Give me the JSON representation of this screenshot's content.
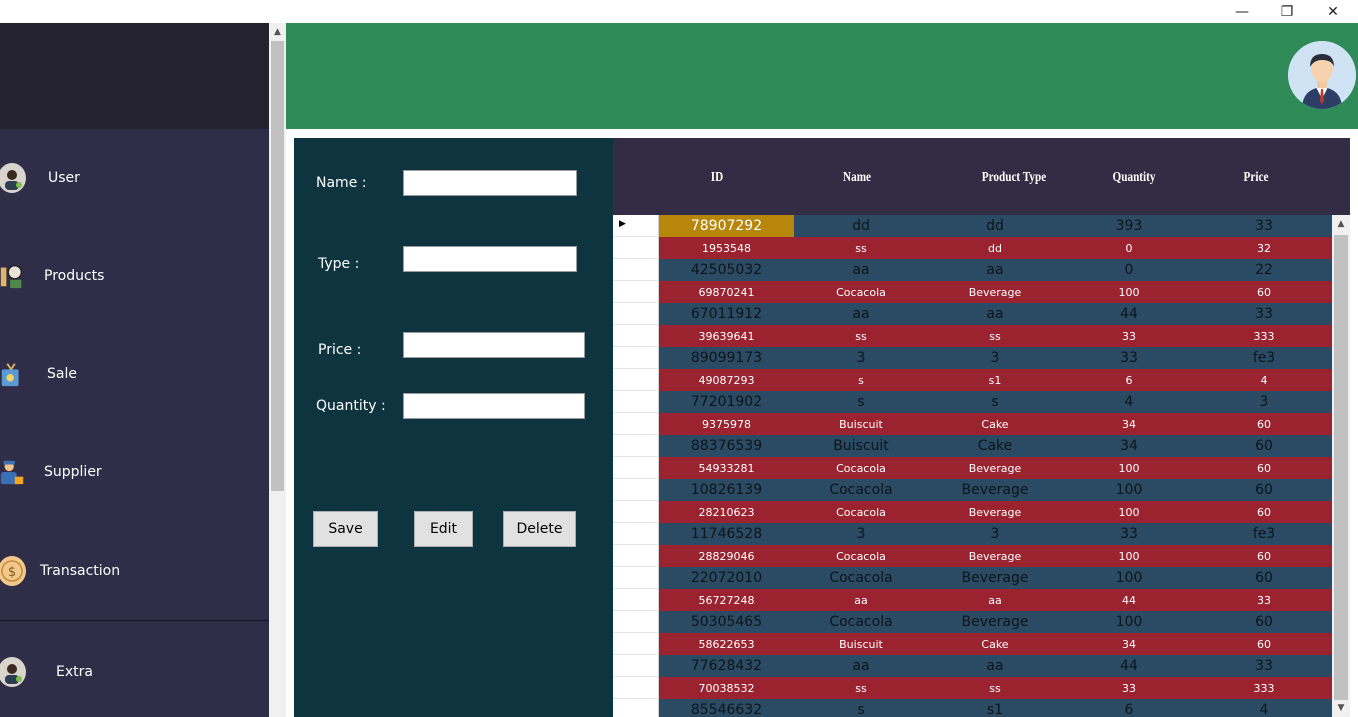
{
  "window": {
    "minimize": "—",
    "maximize": "❐",
    "close": "✕"
  },
  "sidebar": {
    "items": [
      {
        "label": "User",
        "icon": "user-avatar-icon"
      },
      {
        "label": "Products",
        "icon": "products-icon"
      },
      {
        "label": "Sale",
        "icon": "sale-icon"
      },
      {
        "label": "Supplier",
        "icon": "supplier-icon"
      },
      {
        "label": "Transaction",
        "icon": "dollar-coin-icon"
      },
      {
        "label": "Extra",
        "icon": "user-avatar-icon"
      }
    ]
  },
  "form": {
    "name_label": "Name :",
    "type_label": "Type :",
    "price_label": "Price :",
    "quantity_label": "Quantity :",
    "name_value": "",
    "type_value": "",
    "price_value": "",
    "quantity_value": "",
    "save_label": "Save",
    "edit_label": "Edit",
    "delete_label": "Delete"
  },
  "table": {
    "columns": [
      "ID",
      "Name",
      "Product Type",
      "Quantity",
      "Price"
    ],
    "rows": [
      [
        "78907292",
        "dd",
        "dd",
        "393",
        "33"
      ],
      [
        "1953548",
        "ss",
        "dd",
        "0",
        "32"
      ],
      [
        "42505032",
        "aa",
        "aa",
        "0",
        "22"
      ],
      [
        "69870241",
        "Cocacola",
        "Beverage",
        "100",
        "60"
      ],
      [
        "67011912",
        "aa",
        "aa",
        "44",
        "33"
      ],
      [
        "39639641",
        "ss",
        "ss",
        "33",
        "333"
      ],
      [
        "89099173",
        "3",
        "3",
        "33",
        "fe3"
      ],
      [
        "49087293",
        "s",
        "s1",
        "6",
        "4"
      ],
      [
        "77201902",
        "s",
        "s",
        "4",
        "3"
      ],
      [
        "9375978",
        "Buiscuit",
        "Cake",
        "34",
        "60"
      ],
      [
        "88376539",
        "Buiscuit",
        "Cake",
        "34",
        "60"
      ],
      [
        "54933281",
        "Cocacola",
        "Beverage",
        "100",
        "60"
      ],
      [
        "10826139",
        "Cocacola",
        "Beverage",
        "100",
        "60"
      ],
      [
        "28210623",
        "Cocacola",
        "Beverage",
        "100",
        "60"
      ],
      [
        "11746528",
        "3",
        "3",
        "33",
        "fe3"
      ],
      [
        "28829046",
        "Cocacola",
        "Beverage",
        "100",
        "60"
      ],
      [
        "22072010",
        "Cocacola",
        "Beverage",
        "100",
        "60"
      ],
      [
        "56727248",
        "aa",
        "aa",
        "44",
        "33"
      ],
      [
        "50305465",
        "Cocacola",
        "Beverage",
        "100",
        "60"
      ],
      [
        "58622653",
        "Buiscuit",
        "Cake",
        "34",
        "60"
      ],
      [
        "77628432",
        "aa",
        "aa",
        "44",
        "33"
      ],
      [
        "70038532",
        "ss",
        "ss",
        "33",
        "333"
      ],
      [
        "85546632",
        "s",
        "s1",
        "6",
        "4"
      ]
    ]
  },
  "colors": {
    "header_green": "#2e8b57",
    "sidebar_bg": "#2f2d48",
    "form_bg": "#0e3440",
    "row_red": "#9b2330",
    "row_blue": "#2a4b63",
    "selected_cell": "#b8860b"
  }
}
